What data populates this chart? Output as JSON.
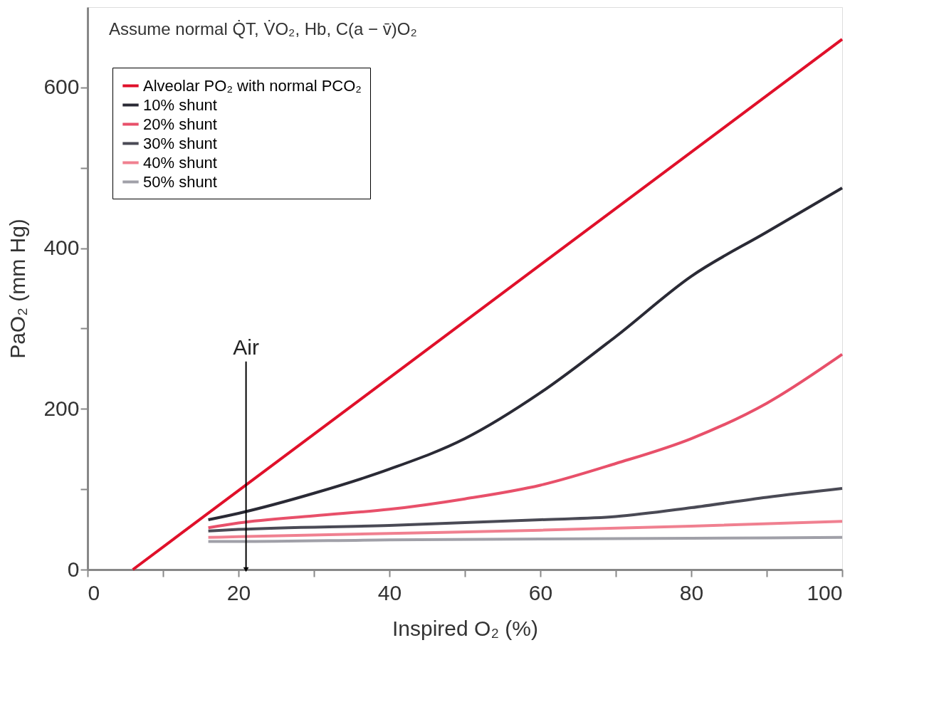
{
  "chart_data": {
    "type": "line",
    "xlabel": "Inspired O₂ (%)",
    "ylabel": "PaO₂ (mm Hg)",
    "xlim": [
      0,
      100
    ],
    "ylim": [
      0,
      700
    ],
    "xticks": [
      0,
      {
        "value": 10,
        "label": null
      },
      20,
      {
        "value": 30,
        "label": null
      },
      40,
      {
        "value": 50,
        "label": null
      },
      60,
      {
        "value": 70,
        "label": null
      },
      80,
      {
        "value": 90,
        "label": null
      },
      100
    ],
    "yticks": [
      0,
      {
        "value": 100,
        "label": null
      },
      200,
      {
        "value": 300,
        "label": null
      },
      400,
      {
        "value": 500,
        "label": null
      },
      600
    ],
    "grid": false,
    "legend": "top left",
    "marker": "none",
    "line_style": "solid",
    "annotations": [
      "Assume normal Q̇T, V̇O₂, Hb, C(a − v̄)O₂",
      {
        "text": "Air",
        "x": 21,
        "y": 0
      }
    ],
    "series": [
      {
        "name": "Alveolar PO₂ with normal PCO₂",
        "color": "#e0102a",
        "x": [
          6,
          100
        ],
        "values": [
          0,
          660
        ]
      },
      {
        "name": "10% shunt",
        "color": "#2a2a35",
        "x": [
          16,
          20,
          30,
          40,
          50,
          60,
          70,
          80,
          90,
          100
        ],
        "values": [
          62,
          70,
          95,
          125,
          163,
          220,
          290,
          365,
          420,
          475
        ]
      },
      {
        "name": "20% shunt",
        "color": "#e8506a",
        "x": [
          16,
          20,
          30,
          40,
          50,
          60,
          70,
          80,
          90,
          100
        ],
        "values": [
          52,
          58,
          67,
          75,
          88,
          105,
          132,
          163,
          207,
          268
        ]
      },
      {
        "name": "30% shunt",
        "color": "#4a4a55",
        "x": [
          16,
          20,
          40,
          60,
          70,
          80,
          90,
          100
        ],
        "values": [
          48,
          50,
          55,
          62,
          66,
          77,
          90,
          101
        ]
      },
      {
        "name": "40% shunt",
        "color": "#f08090",
        "x": [
          16,
          20,
          40,
          60,
          80,
          100
        ],
        "values": [
          40,
          41,
          45,
          49,
          54,
          60
        ]
      },
      {
        "name": "50% shunt",
        "color": "#a0a0a8",
        "x": [
          16,
          20,
          40,
          60,
          80,
          100
        ],
        "values": [
          35,
          35,
          37,
          38,
          39,
          40
        ]
      }
    ]
  }
}
